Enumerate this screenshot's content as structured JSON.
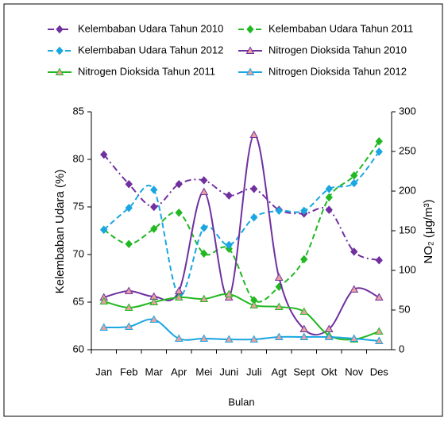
{
  "chart_data": {
    "type": "line",
    "categories": [
      "Jan",
      "Feb",
      "Mar",
      "Apr",
      "Mei",
      "Juni",
      "Juli",
      "Agt",
      "Sept",
      "Okt",
      "Nov",
      "Des"
    ],
    "xlabel": "Bulan",
    "ylabel": "Kelembaban Udara (%)",
    "y2label": "NO₂ (μg/m³)",
    "ylim": [
      60,
      85
    ],
    "yticks": [
      60,
      65,
      70,
      75,
      80,
      85
    ],
    "y2lim": [
      0,
      300
    ],
    "y2ticks": [
      0,
      50,
      100,
      150,
      200,
      250,
      300
    ],
    "series": [
      {
        "name": "Kelembaban Udara Tahun 2010",
        "color": "#7030a0",
        "dash": "dashdot",
        "marker": "diamond",
        "values": [
          80.5,
          77.4,
          75.0,
          77.4,
          77.8,
          76.2,
          76.9,
          74.7,
          74.3,
          74.7,
          70.3,
          69.4
        ]
      },
      {
        "name": "Kelembaban Udara Tahun 2011",
        "color": "#22b822",
        "dash": "dash",
        "marker": "diamond",
        "values": [
          72.6,
          71.1,
          72.7,
          74.4,
          70.1,
          70.6,
          65.2,
          66.6,
          69.5,
          76.0,
          78.3,
          81.9
        ]
      },
      {
        "name": "Kelembaban Udara Tahun 2012",
        "color": "#1aa6e0",
        "dash": "dash",
        "marker": "diamond",
        "values": [
          72.6,
          74.9,
          76.8,
          65.7,
          72.8,
          71.0,
          73.9,
          74.6,
          74.6,
          76.9,
          77.5,
          80.8
        ]
      },
      {
        "name": "Nitrogen Dioksida Tahun 2010",
        "color": "#7030a0",
        "dash": "solid",
        "marker": "triangle",
        "axis": "y2",
        "values": [
          66,
          74,
          67,
          74,
          199,
          66,
          271,
          91,
          26,
          26,
          76,
          66
        ]
      },
      {
        "name": "Nitrogen Dioksida Tahun 2011",
        "color": "#22b822",
        "dash": "solid",
        "marker": "triangle",
        "axis": "y2",
        "values": [
          61,
          53,
          60,
          66,
          64,
          70,
          56,
          54,
          48,
          18,
          13,
          23
        ]
      },
      {
        "name": "Nitrogen Dioksida Tahun 2012",
        "color": "#1aa6e0",
        "dash": "solid",
        "marker": "triangle",
        "axis": "y2",
        "values": [
          28,
          29,
          38,
          14,
          14,
          13,
          13,
          16,
          16,
          16,
          14,
          11
        ]
      }
    ]
  }
}
